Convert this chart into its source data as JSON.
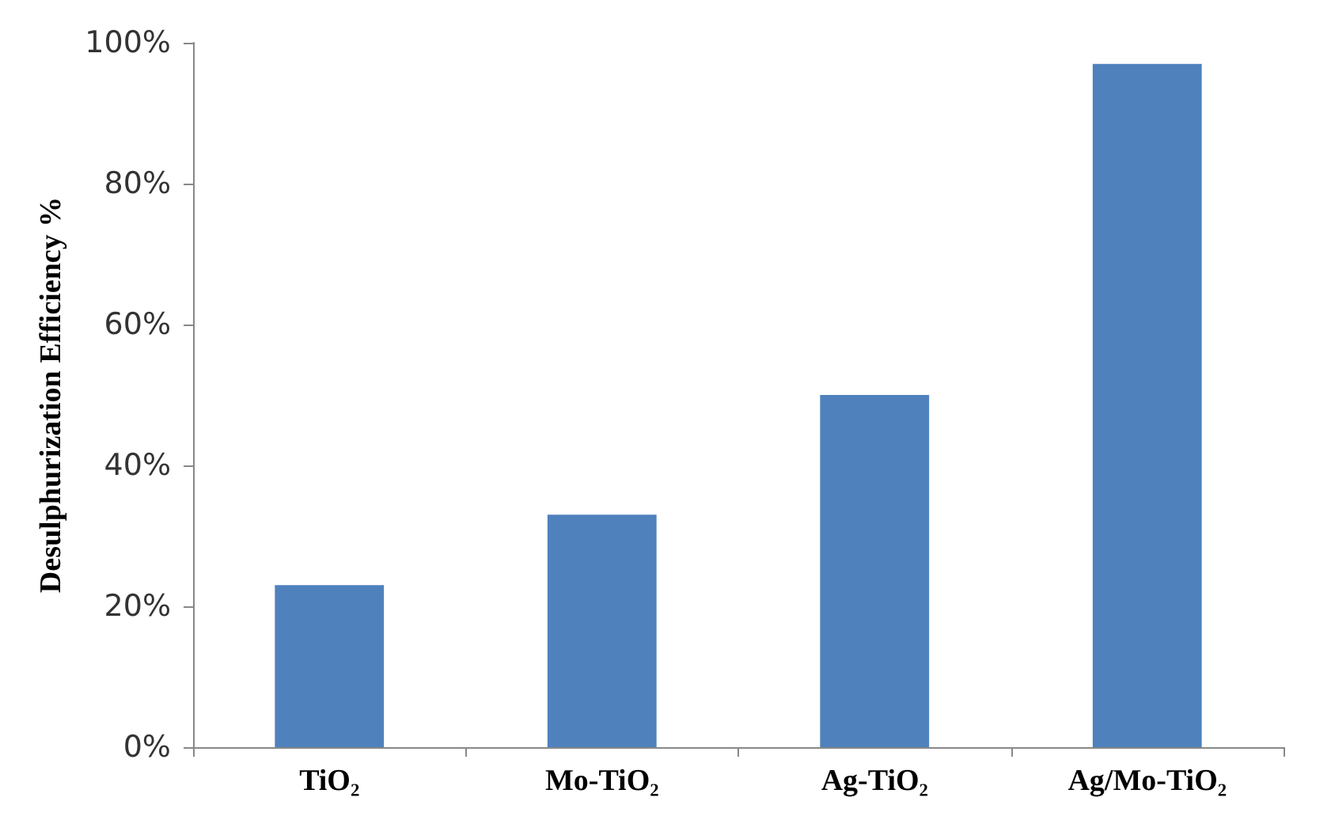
{
  "chart_data": {
    "type": "bar",
    "ylabel": "Desulphurization Efficiency %",
    "categories": [
      "TiO₂",
      "Mo-TiO₂",
      "Ag-TiO₂",
      "Ag/Mo-TiO₂"
    ],
    "values": [
      23,
      33,
      50,
      97
    ],
    "color": "#4f81bd",
    "ylim": [
      0,
      100
    ],
    "yticks": [
      {
        "value": 0,
        "label": "0%"
      },
      {
        "value": 20,
        "label": "20%"
      },
      {
        "value": 40,
        "label": "40%"
      },
      {
        "value": 60,
        "label": "60%"
      },
      {
        "value": 80,
        "label": "80%"
      },
      {
        "value": 100,
        "label": "100%"
      }
    ],
    "grid": false
  }
}
